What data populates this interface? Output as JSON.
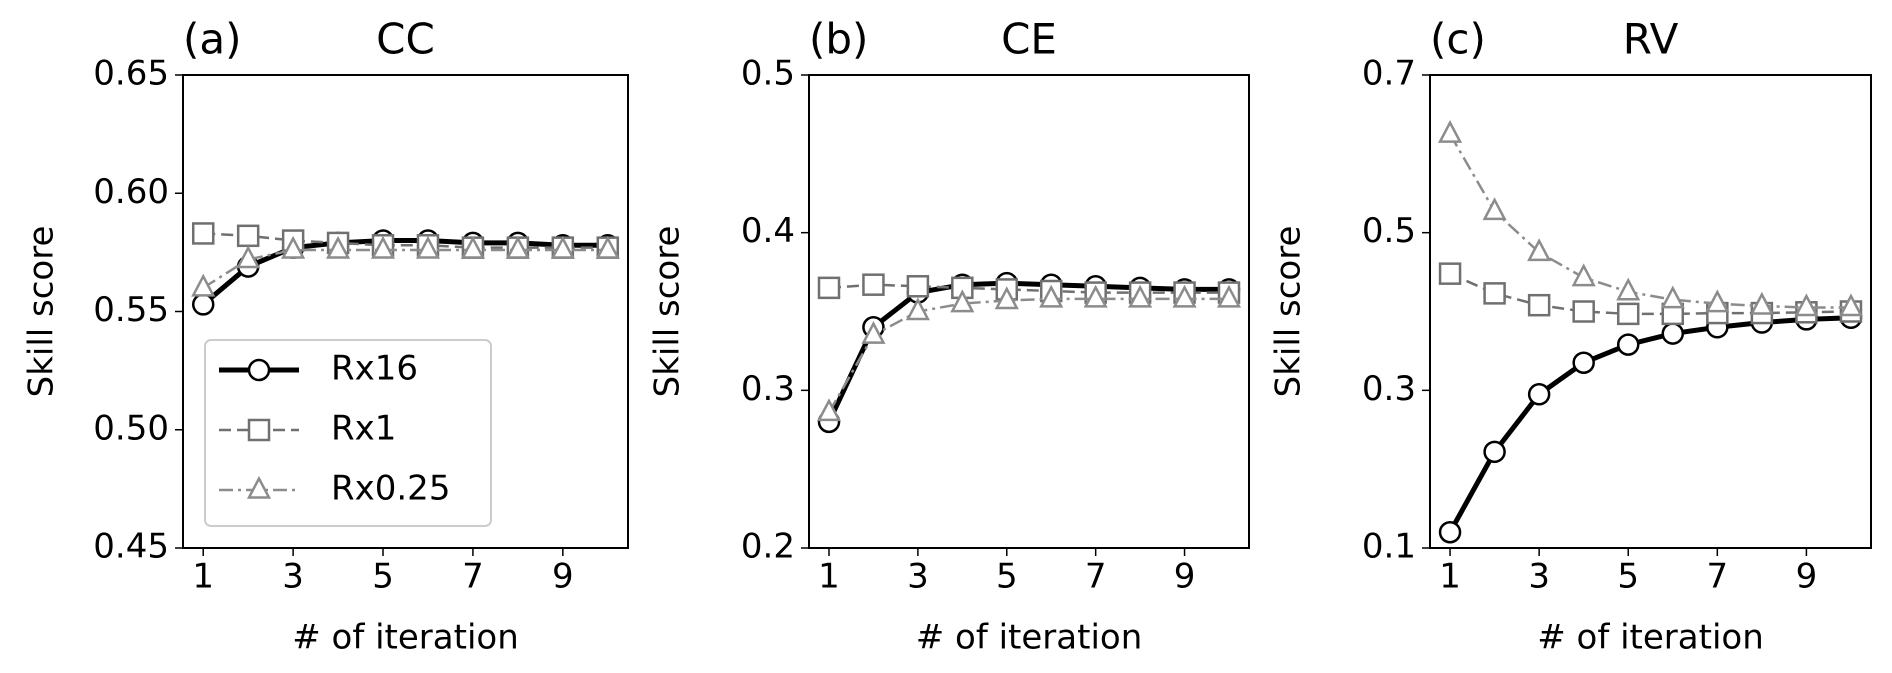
{
  "chart_data": [
    {
      "type": "line",
      "label": "(a)",
      "title": "CC",
      "xlabel": "# of iteration",
      "ylabel": "Skill score",
      "x": [
        1,
        2,
        3,
        4,
        5,
        6,
        7,
        8,
        9,
        10
      ],
      "xlim": [
        0.55,
        10.45
      ],
      "xticks": [
        1,
        3,
        5,
        7,
        9
      ],
      "ylim": [
        0.45,
        0.65
      ],
      "yticks": [
        0.45,
        {
          "value": 0.5,
          "label": "0.50"
        },
        0.55,
        {
          "value": 0.6,
          "label": "0.60"
        },
        0.65
      ],
      "legend": "lower left",
      "series": [
        {
          "name": "Rx16",
          "color": "#000000",
          "marker": "circle",
          "linestyle": "solid",
          "values": [
            0.553,
            0.569,
            0.577,
            0.579,
            0.58,
            0.58,
            0.579,
            0.579,
            0.578,
            0.578
          ]
        },
        {
          "name": "Rx1",
          "color": "#707070",
          "marker": "square",
          "linestyle": "dashed",
          "values": [
            0.583,
            0.582,
            0.58,
            0.579,
            0.578,
            0.578,
            0.577,
            0.577,
            0.577,
            0.577
          ]
        },
        {
          "name": "Rx0.25",
          "color": "#8c8c8c",
          "marker": "triangle",
          "linestyle": "dashdot",
          "values": [
            0.56,
            0.572,
            0.576,
            0.576,
            0.576,
            0.576,
            0.576,
            0.576,
            0.576,
            0.576
          ]
        }
      ]
    },
    {
      "type": "line",
      "label": "(b)",
      "title": "CE",
      "xlabel": "# of iteration",
      "ylabel": "Skill score",
      "x": [
        1,
        2,
        3,
        4,
        5,
        6,
        7,
        8,
        9,
        10
      ],
      "xlim": [
        0.55,
        10.45
      ],
      "xticks": [
        1,
        3,
        5,
        7,
        9
      ],
      "ylim": [
        0.2,
        0.5
      ],
      "yticks": [
        0.2,
        0.3,
        0.4,
        0.5
      ],
      "series": [
        {
          "name": "Rx16",
          "color": "#000000",
          "marker": "circle",
          "linestyle": "solid",
          "values": [
            0.28,
            0.34,
            0.362,
            0.367,
            0.368,
            0.367,
            0.366,
            0.365,
            0.364,
            0.364
          ]
        },
        {
          "name": "Rx1",
          "color": "#707070",
          "marker": "square",
          "linestyle": "dashed",
          "values": [
            0.365,
            0.367,
            0.366,
            0.365,
            0.364,
            0.363,
            0.362,
            0.362,
            0.362,
            0.362
          ]
        },
        {
          "name": "Rx0.25",
          "color": "#8c8c8c",
          "marker": "triangle",
          "linestyle": "dashdot",
          "values": [
            0.286,
            0.335,
            0.35,
            0.355,
            0.357,
            0.358,
            0.358,
            0.358,
            0.358,
            0.358
          ]
        }
      ]
    },
    {
      "type": "line",
      "label": "(c)",
      "title": "RV",
      "xlabel": "# of iteration",
      "ylabel": "Skill score",
      "x": [
        1,
        2,
        3,
        4,
        5,
        6,
        7,
        8,
        9,
        10
      ],
      "xlim": [
        0.55,
        10.45
      ],
      "xticks": [
        1,
        3,
        5,
        7,
        9
      ],
      "ylim": [
        0.1,
        0.7
      ],
      "yticks": [
        0.1,
        0.3,
        0.5,
        0.7
      ],
      "series": [
        {
          "name": "Rx16",
          "color": "#000000",
          "marker": "circle",
          "linestyle": "solid",
          "values": [
            0.12,
            0.222,
            0.295,
            0.335,
            0.358,
            0.372,
            0.38,
            0.386,
            0.39,
            0.392
          ]
        },
        {
          "name": "Rx1",
          "color": "#707070",
          "marker": "square",
          "linestyle": "dashed",
          "values": [
            0.448,
            0.423,
            0.408,
            0.4,
            0.397,
            0.397,
            0.398,
            0.398,
            0.399,
            0.4
          ]
        },
        {
          "name": "Rx0.25",
          "color": "#8c8c8c",
          "marker": "triangle",
          "linestyle": "dashdot",
          "values": [
            0.625,
            0.527,
            0.475,
            0.443,
            0.425,
            0.415,
            0.41,
            0.407,
            0.405,
            0.405
          ]
        }
      ]
    }
  ]
}
